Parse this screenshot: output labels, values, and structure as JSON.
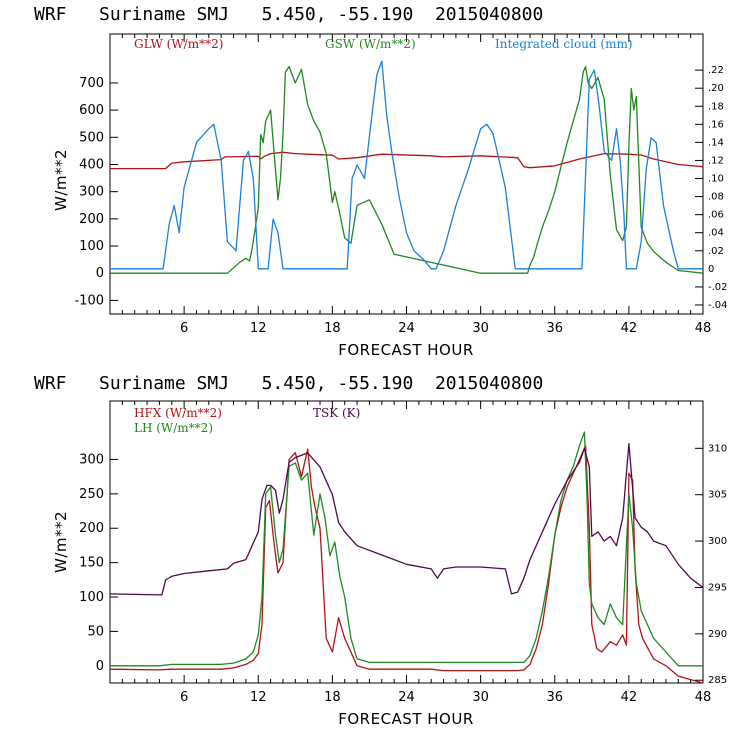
{
  "colors": {
    "red": "#b01515",
    "green": "#228822",
    "blue": "#1a80d8",
    "purple": "#4b0a4e"
  },
  "chart_data": [
    {
      "type": "line",
      "title": "WRF   Suriname SMJ   5.450, -55.190  2015040800",
      "xlabel": "FORECAST HOUR",
      "ylabel": "W/m**2",
      "xlim": [
        0,
        48
      ],
      "ylim": [
        -150,
        880
      ],
      "y2lim": [
        -0.05,
        0.26
      ],
      "x_ticks": [
        "6",
        "12",
        "18",
        "24",
        "30",
        "36",
        "42",
        "48"
      ],
      "y_ticks": [
        "-100",
        "0",
        "100",
        "200",
        "300",
        "400",
        "500",
        "600",
        "700"
      ],
      "y2_ticks": [
        "-.04",
        "-.02",
        "0",
        ".02",
        ".04",
        ".06",
        ".08",
        ".10",
        ".12",
        ".14",
        ".16",
        ".18",
        ".20",
        ".22"
      ],
      "series": [
        {
          "name": "GLW (W/m**2)",
          "color": "#b01515",
          "axis": "left",
          "x": [
            0,
            4.5,
            5,
            6,
            9,
            9.3,
            12,
            12.2,
            12.5,
            13,
            14,
            15,
            16,
            18,
            18.5,
            20,
            22,
            26,
            27,
            30,
            33,
            33.5,
            34,
            36,
            38,
            40,
            42,
            43,
            44,
            46,
            48
          ],
          "y": [
            385,
            385,
            405,
            410,
            418,
            428,
            430,
            420,
            430,
            440,
            445,
            440,
            438,
            434,
            420,
            425,
            438,
            432,
            428,
            432,
            425,
            392,
            388,
            395,
            420,
            440,
            438,
            435,
            420,
            400,
            392
          ]
        },
        {
          "name": "GSW (W/m**2)",
          "color": "#228822",
          "axis": "left",
          "x": [
            0,
            9.5,
            10,
            10.5,
            11,
            11.3,
            11.5,
            12,
            12.2,
            12.4,
            12.6,
            12.8,
            13,
            13.4,
            13.6,
            13.8,
            14,
            14.2,
            14.5,
            15,
            15.5,
            16,
            16.5,
            17,
            17.5,
            18,
            18.2,
            18.5,
            19,
            19.5,
            20,
            21,
            22,
            23,
            30,
            33,
            33.8,
            34,
            34.3,
            34.6,
            35,
            35.5,
            36,
            36.5,
            37,
            37.5,
            38,
            38.3,
            38.5,
            38.7,
            39,
            39.5,
            40,
            40.5,
            41,
            41.5,
            41.8,
            42,
            42.2,
            42.4,
            42.6,
            43,
            43.5,
            44,
            45,
            46,
            48
          ],
          "y": [
            0,
            0,
            20,
            40,
            55,
            45,
            90,
            240,
            510,
            480,
            560,
            580,
            600,
            380,
            270,
            350,
            510,
            740,
            760,
            700,
            750,
            620,
            560,
            520,
            440,
            260,
            300,
            240,
            130,
            110,
            250,
            270,
            180,
            70,
            0,
            0,
            0,
            30,
            60,
            110,
            170,
            230,
            300,
            390,
            480,
            560,
            640,
            740,
            760,
            700,
            680,
            720,
            640,
            360,
            160,
            120,
            170,
            470,
            680,
            600,
            650,
            170,
            110,
            80,
            40,
            10,
            0
          ]
        },
        {
          "name": "Integrated cloud (mm)",
          "color": "#1a80d8",
          "axis": "right",
          "x": [
            0,
            4.3,
            4.8,
            5.2,
            5.6,
            6,
            7,
            8,
            8.4,
            9,
            9.5,
            10.2,
            10.8,
            11.2,
            11.6,
            12,
            12.3,
            12.8,
            13.2,
            13.6,
            14,
            14.5,
            15,
            15.5,
            18,
            19.2,
            19.6,
            20,
            20.6,
            21.2,
            21.6,
            22,
            22.4,
            22.8,
            23.4,
            24,
            24.6,
            25.4,
            26,
            26.4,
            27,
            28,
            29,
            30,
            30.5,
            31,
            32,
            32.8,
            33.4,
            36,
            38.2,
            38.8,
            39.2,
            39.6,
            40,
            40.6,
            41,
            41.3,
            41.6,
            41.8,
            42.2,
            42.6,
            43,
            43.4,
            43.8,
            44.2,
            44.8,
            45.6,
            46,
            48
          ],
          "y": [
            0,
            0,
            0.05,
            0.07,
            0.04,
            0.09,
            0.14,
            0.155,
            0.16,
            0.12,
            0.03,
            0.02,
            0.12,
            0.13,
            0.1,
            0.0,
            0.0,
            0.0,
            0.055,
            0.04,
            0.0,
            0.0,
            0.0,
            0.0,
            0.0,
            0.0,
            0.1,
            0.115,
            0.1,
            0.17,
            0.215,
            0.23,
            0.17,
            0.13,
            0.08,
            0.04,
            0.02,
            0.01,
            0.0,
            0.0,
            0.02,
            0.07,
            0.11,
            0.155,
            0.16,
            0.15,
            0.09,
            0.0,
            0.0,
            0.0,
            0.0,
            0.21,
            0.22,
            0.18,
            0.13,
            0.12,
            0.155,
            0.12,
            0.06,
            0.0,
            0.0,
            0.0,
            0.03,
            0.11,
            0.145,
            0.14,
            0.07,
            0.02,
            0.0,
            0.0
          ]
        }
      ]
    },
    {
      "type": "line",
      "title": "WRF   Suriname SMJ   5.450, -55.190  2015040800",
      "xlabel": "FORECAST HOUR",
      "ylabel": "W/m**2",
      "xlim": [
        0,
        48
      ],
      "ylim": [
        -25,
        385
      ],
      "y2lim": [
        284.7,
        315.1
      ],
      "x_ticks": [
        "6",
        "12",
        "18",
        "24",
        "30",
        "36",
        "42",
        "48"
      ],
      "y_ticks": [
        "0",
        "50",
        "100",
        "150",
        "200",
        "250",
        "300"
      ],
      "y2_ticks": [
        "285",
        "290",
        "295",
        "300",
        "305",
        "310"
      ],
      "series": [
        {
          "name": "HFX (W/m**2)",
          "color": "#b01515",
          "axis": "left",
          "x": [
            0,
            4,
            5,
            9,
            10,
            11,
            11.6,
            12,
            12.3,
            12.6,
            12.9,
            13.3,
            13.6,
            14,
            14.5,
            15,
            15.5,
            16,
            16.3,
            16.6,
            17,
            17.5,
            18,
            18.5,
            19,
            20,
            21,
            26,
            27,
            33,
            33.5,
            34,
            34.5,
            35,
            35.5,
            36,
            36.5,
            37,
            37.5,
            38,
            38.5,
            38.8,
            39,
            39.4,
            39.8,
            40.5,
            41,
            41.5,
            41.8,
            42,
            42.3,
            42.5,
            42.8,
            43.1,
            43.4,
            44,
            45,
            46,
            47,
            48
          ],
          "y": [
            -5,
            -6,
            -5,
            -5,
            -3,
            2,
            8,
            18,
            60,
            230,
            240,
            175,
            135,
            150,
            300,
            310,
            275,
            315,
            260,
            230,
            200,
            40,
            20,
            70,
            40,
            0,
            -5,
            -5,
            -7,
            -7,
            -6,
            2,
            25,
            60,
            120,
            190,
            230,
            260,
            280,
            300,
            320,
            200,
            60,
            25,
            20,
            35,
            30,
            45,
            30,
            280,
            270,
            140,
            60,
            40,
            30,
            10,
            0,
            -15,
            -20,
            -25
          ]
        },
        {
          "name": "LH (W/m**2)",
          "color": "#228822",
          "axis": "left",
          "x": [
            0,
            4,
            5,
            9,
            10,
            11,
            11.6,
            12,
            12.3,
            12.6,
            13,
            13.4,
            13.7,
            14,
            14.5,
            15,
            15.5,
            16,
            16.5,
            17,
            17.4,
            17.8,
            18.2,
            18.6,
            19,
            19.5,
            20,
            21,
            26,
            33,
            33.5,
            34,
            34.5,
            35,
            35.5,
            36,
            36.5,
            37,
            37.5,
            38,
            38.4,
            38.6,
            38.8,
            39,
            39.5,
            40,
            40.5,
            41,
            41.5,
            42,
            42.3,
            42.6,
            43,
            43.5,
            44,
            45,
            46,
            48
          ],
          "y": [
            0,
            0,
            2,
            2,
            4,
            10,
            20,
            45,
            100,
            250,
            260,
            190,
            150,
            170,
            290,
            295,
            270,
            280,
            190,
            250,
            215,
            160,
            180,
            130,
            100,
            40,
            10,
            5,
            5,
            5,
            5,
            15,
            40,
            80,
            130,
            190,
            240,
            270,
            290,
            320,
            340,
            250,
            120,
            90,
            70,
            60,
            90,
            70,
            60,
            250,
            200,
            120,
            80,
            60,
            40,
            20,
            0,
            0
          ]
        },
        {
          "name": "TSK (K)",
          "color": "#4b0a4e",
          "axis": "right",
          "x": [
            0,
            4.2,
            4.5,
            5,
            6,
            8,
            9.5,
            10,
            11,
            11.5,
            12,
            12.3,
            12.7,
            13,
            13.4,
            13.7,
            14,
            14.5,
            15,
            16,
            17,
            18,
            18.5,
            19,
            20,
            22,
            24,
            26,
            26.5,
            27,
            28,
            30,
            32,
            32.5,
            33,
            33.5,
            34,
            35,
            36,
            37,
            38,
            38.4,
            38.8,
            39,
            39.5,
            40,
            40.5,
            41,
            41.5,
            42,
            42.5,
            43,
            43.5,
            44,
            45,
            46,
            47,
            48
          ],
          "y": [
            294.3,
            294.2,
            295.8,
            296.2,
            296.5,
            296.8,
            297.0,
            297.6,
            298.0,
            299.5,
            301.0,
            304.5,
            306.0,
            306.0,
            305.5,
            303.0,
            304.5,
            308.5,
            309.0,
            309.5,
            308.0,
            305.0,
            302.0,
            301.0,
            299.5,
            298.5,
            297.5,
            297.0,
            296.0,
            297.0,
            297.2,
            297.2,
            297.0,
            294.3,
            294.5,
            296.0,
            298.0,
            301.0,
            304.0,
            306.5,
            308.5,
            310.0,
            308.0,
            300.5,
            301.0,
            300.0,
            300.5,
            299.5,
            302.5,
            310.5,
            302.5,
            301.5,
            301.0,
            300.0,
            299.5,
            297.5,
            296.0,
            295.0
          ]
        }
      ]
    }
  ]
}
